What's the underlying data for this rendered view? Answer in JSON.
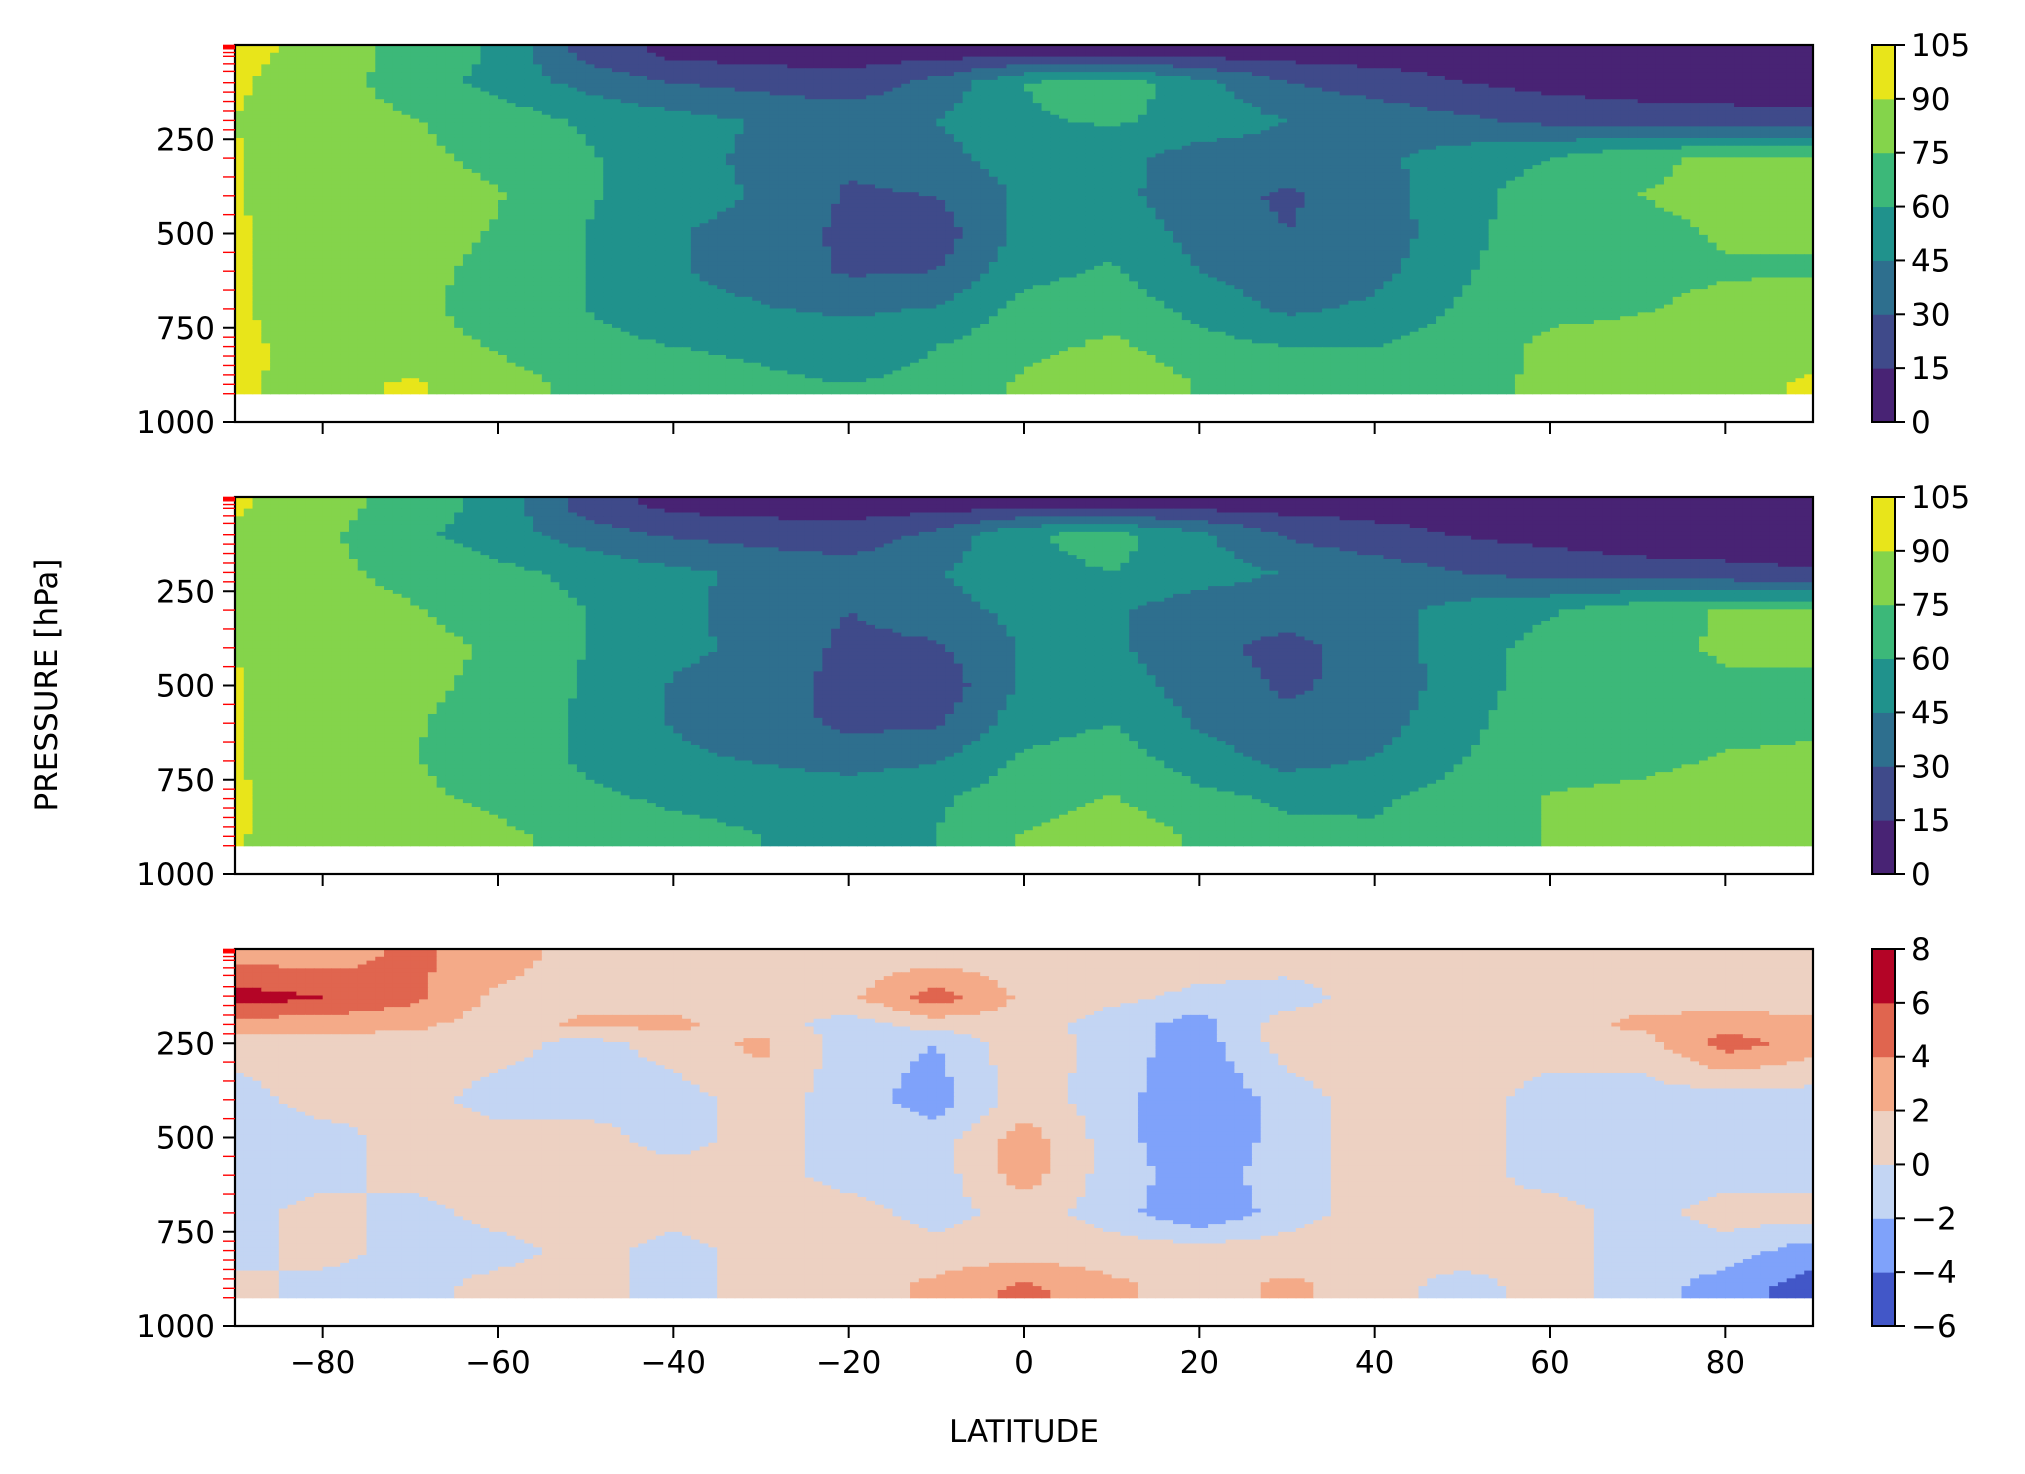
{
  "figure": {
    "ylabel": "PRESSURE [hPa]",
    "xlabel": "LATITUDE"
  },
  "chart_data": [
    {
      "type": "contourf",
      "panel": "top",
      "x": {
        "label": "",
        "lim": [
          -90,
          90
        ],
        "ticks": [
          -80,
          -60,
          -40,
          -20,
          0,
          20,
          40,
          60,
          80
        ],
        "tick_labels_shown": false
      },
      "y": {
        "label": "",
        "lim": [
          1000,
          0
        ],
        "inverted": true,
        "ticks": [
          250,
          500,
          750,
          1000
        ],
        "tick_labels": [
          "250",
          "500",
          "750",
          "1000"
        ]
      },
      "pressure_levels": [
        1,
        2,
        3,
        5,
        7,
        10,
        20,
        30,
        50,
        70,
        100,
        125,
        150,
        175,
        200,
        225,
        250,
        300,
        350,
        400,
        450,
        500,
        550,
        600,
        650,
        700,
        750,
        775,
        800,
        825,
        850,
        875,
        900,
        925
      ],
      "data_floor_hpa": 925,
      "colormap": "viridis",
      "levels": [
        0,
        15,
        30,
        45,
        60,
        75,
        90,
        105
      ],
      "colors": [
        "#482374",
        "#3f4a8a",
        "#2e6f8e",
        "#20928c",
        "#3cb879",
        "#84d44b",
        "#e8e51a"
      ],
      "colorbar_ticks": [
        "0",
        "15",
        "30",
        "45",
        "60",
        "75",
        "90",
        "105"
      ],
      "latitudes": [
        -90,
        -80,
        -70,
        -60,
        -50,
        -40,
        -30,
        -20,
        -10,
        0,
        10,
        20,
        30,
        40,
        50,
        60,
        70,
        80,
        90
      ],
      "rows": [
        {
          "p": 20,
          "values": [
            95,
            84,
            70,
            58,
            25,
            10,
            8,
            8,
            8,
            8,
            8,
            8,
            8,
            8,
            8,
            8,
            8,
            8,
            8
          ]
        },
        {
          "p": 100,
          "values": [
            92,
            82,
            68,
            55,
            40,
            30,
            25,
            20,
            35,
            60,
            70,
            50,
            30,
            22,
            15,
            10,
            8,
            8,
            8
          ]
        },
        {
          "p": 200,
          "values": [
            90,
            82,
            76,
            68,
            58,
            50,
            44,
            40,
            45,
            58,
            62,
            55,
            45,
            40,
            33,
            26,
            22,
            20,
            18
          ]
        },
        {
          "p": 300,
          "values": [
            91,
            80,
            78,
            72,
            62,
            50,
            42,
            32,
            40,
            52,
            50,
            38,
            38,
            42,
            52,
            60,
            72,
            78,
            78
          ]
        },
        {
          "p": 400,
          "values": [
            91,
            81,
            80,
            76,
            62,
            50,
            44,
            28,
            30,
            48,
            50,
            35,
            28,
            38,
            55,
            68,
            75,
            78,
            78
          ]
        },
        {
          "p": 500,
          "values": [
            92,
            82,
            80,
            74,
            60,
            46,
            40,
            26,
            22,
            50,
            55,
            40,
            30,
            36,
            55,
            70,
            72,
            76,
            76
          ]
        },
        {
          "p": 600,
          "values": [
            92,
            82,
            78,
            72,
            60,
            46,
            40,
            28,
            30,
            55,
            62,
            45,
            35,
            40,
            58,
            72,
            72,
            74,
            74
          ]
        },
        {
          "p": 700,
          "values": [
            92,
            82,
            78,
            70,
            60,
            50,
            46,
            42,
            46,
            65,
            70,
            55,
            42,
            48,
            62,
            72,
            74,
            78,
            80
          ]
        },
        {
          "p": 800,
          "values": [
            93,
            85,
            80,
            74,
            65,
            60,
            58,
            55,
            60,
            70,
            78,
            66,
            60,
            60,
            68,
            78,
            80,
            84,
            86
          ]
        },
        {
          "p": 900,
          "values": [
            92,
            86,
            92,
            80,
            72,
            66,
            62,
            60,
            62,
            78,
            88,
            74,
            65,
            64,
            70,
            78,
            82,
            86,
            92
          ]
        }
      ]
    },
    {
      "type": "contourf",
      "panel": "middle",
      "x": {
        "label": "",
        "lim": [
          -90,
          90
        ],
        "ticks": [
          -80,
          -60,
          -40,
          -20,
          0,
          20,
          40,
          60,
          80
        ],
        "tick_labels_shown": false
      },
      "y": {
        "label": "",
        "lim": [
          1000,
          0
        ],
        "inverted": true,
        "ticks": [
          250,
          500,
          750,
          1000
        ],
        "tick_labels": [
          "250",
          "500",
          "750",
          "1000"
        ]
      },
      "pressure_levels": [
        1,
        2,
        3,
        5,
        7,
        10,
        20,
        30,
        50,
        70,
        100,
        125,
        150,
        175,
        200,
        225,
        250,
        300,
        350,
        400,
        450,
        500,
        550,
        600,
        650,
        700,
        750,
        775,
        800,
        825,
        850,
        875,
        900,
        925
      ],
      "data_floor_hpa": 925,
      "colormap": "viridis",
      "levels": [
        0,
        15,
        30,
        45,
        60,
        75,
        90,
        105
      ],
      "colors": [
        "#482374",
        "#3f4a8a",
        "#2e6f8e",
        "#20928c",
        "#3cb879",
        "#84d44b",
        "#e8e51a"
      ],
      "colorbar_ticks": [
        "0",
        "15",
        "30",
        "45",
        "60",
        "75",
        "90",
        "105"
      ],
      "latitudes": [
        -90,
        -80,
        -70,
        -60,
        -50,
        -40,
        -30,
        -20,
        -10,
        0,
        10,
        20,
        30,
        40,
        50,
        60,
        70,
        80,
        90
      ],
      "rows": [
        {
          "p": 20,
          "values": [
            92,
            82,
            68,
            55,
            22,
            10,
            8,
            8,
            8,
            8,
            8,
            8,
            8,
            8,
            8,
            8,
            8,
            8,
            8
          ]
        },
        {
          "p": 100,
          "values": [
            88,
            78,
            64,
            52,
            38,
            28,
            24,
            20,
            34,
            58,
            66,
            48,
            28,
            20,
            14,
            10,
            8,
            8,
            8
          ]
        },
        {
          "p": 200,
          "values": [
            88,
            78,
            72,
            64,
            56,
            48,
            42,
            38,
            44,
            56,
            60,
            52,
            44,
            38,
            30,
            24,
            20,
            18,
            16
          ]
        },
        {
          "p": 300,
          "values": [
            90,
            78,
            76,
            70,
            60,
            48,
            40,
            30,
            38,
            50,
            48,
            36,
            36,
            40,
            50,
            58,
            70,
            76,
            76
          ]
        },
        {
          "p": 400,
          "values": [
            90,
            79,
            78,
            74,
            60,
            48,
            42,
            26,
            28,
            46,
            48,
            33,
            26,
            36,
            53,
            66,
            73,
            76,
            76
          ]
        },
        {
          "p": 500,
          "values": [
            91,
            80,
            78,
            72,
            58,
            44,
            38,
            24,
            20,
            48,
            53,
            38,
            28,
            34,
            53,
            68,
            70,
            74,
            74
          ]
        },
        {
          "p": 600,
          "values": [
            91,
            80,
            76,
            70,
            58,
            44,
            38,
            26,
            28,
            53,
            60,
            43,
            33,
            38,
            56,
            70,
            70,
            72,
            72
          ]
        },
        {
          "p": 700,
          "values": [
            91,
            80,
            76,
            68,
            58,
            48,
            44,
            40,
            44,
            63,
            68,
            53,
            40,
            46,
            60,
            70,
            72,
            76,
            78
          ]
        },
        {
          "p": 800,
          "values": [
            92,
            83,
            78,
            72,
            63,
            58,
            56,
            53,
            58,
            68,
            76,
            64,
            58,
            58,
            66,
            76,
            78,
            82,
            84
          ]
        },
        {
          "p": 900,
          "values": [
            91,
            84,
            90,
            78,
            70,
            64,
            60,
            58,
            60,
            76,
            86,
            72,
            63,
            62,
            68,
            76,
            80,
            84,
            90
          ]
        }
      ]
    },
    {
      "type": "contourf",
      "panel": "bottom",
      "x": {
        "label": "LATITUDE",
        "lim": [
          -90,
          90
        ],
        "ticks": [
          -80,
          -60,
          -40,
          -20,
          0,
          20,
          40,
          60,
          80
        ],
        "tick_labels": [
          "−80",
          "−60",
          "−40",
          "−20",
          "0",
          "20",
          "40",
          "60",
          "80"
        ]
      },
      "y": {
        "label": "",
        "lim": [
          1000,
          0
        ],
        "inverted": true,
        "ticks": [
          250,
          500,
          750,
          1000
        ],
        "tick_labels": [
          "250",
          "500",
          "750",
          "1000"
        ]
      },
      "pressure_levels": [
        1,
        2,
        3,
        5,
        7,
        10,
        20,
        30,
        50,
        70,
        100,
        125,
        150,
        175,
        200,
        225,
        250,
        300,
        350,
        400,
        450,
        500,
        550,
        600,
        650,
        700,
        750,
        775,
        800,
        825,
        850,
        875,
        900,
        925
      ],
      "data_floor_hpa": 925,
      "colormap": "coolwarm",
      "levels": [
        -6,
        -4,
        -2,
        0,
        2,
        4,
        6,
        8
      ],
      "colors": [
        "#4257c8",
        "#7fa2fa",
        "#c3d5f3",
        "#edd1c2",
        "#f4aa88",
        "#e0654f",
        "#b40426"
      ],
      "colorbar_ticks": [
        "8",
        "6",
        "4",
        "2",
        "0",
        "−2",
        "−4",
        "−6"
      ],
      "latitudes": [
        -90,
        -80,
        -70,
        -60,
        -50,
        -40,
        -30,
        -20,
        -10,
        0,
        10,
        20,
        30,
        40,
        50,
        60,
        70,
        80,
        90
      ],
      "rows": [
        {
          "p": 20,
          "values": [
            3.5,
            3,
            4.5,
            3,
            1,
            1,
            1,
            1,
            1,
            1,
            1,
            1,
            1,
            1,
            1,
            1,
            1,
            1,
            1
          ]
        },
        {
          "p": 130,
          "values": [
            7,
            6,
            4.5,
            1.5,
            1,
            1,
            1,
            1.5,
            5,
            1.5,
            0.5,
            -0.5,
            -1,
            1,
            1,
            1,
            1,
            1,
            1
          ]
        },
        {
          "p": 200,
          "values": [
            3,
            3,
            2.5,
            1,
            2.5,
            2.5,
            1,
            -1,
            1,
            1,
            -1,
            -3,
            1,
            1,
            1,
            1,
            2.5,
            3,
            2.5
          ]
        },
        {
          "p": 250,
          "values": [
            1,
            1,
            1,
            1,
            -1,
            1,
            2.5,
            -1,
            -2,
            1.5,
            -1,
            -3,
            1,
            1,
            1,
            1,
            1,
            5,
            3
          ]
        },
        {
          "p": 400,
          "values": [
            -1,
            1,
            1,
            -1,
            -1,
            -1,
            1,
            -1,
            -3,
            1,
            -1,
            -4,
            -1,
            1,
            1,
            -1,
            -1,
            -1,
            -1
          ]
        },
        {
          "p": 500,
          "values": [
            -1,
            -1,
            1,
            1,
            1,
            -1,
            1,
            -1,
            -1,
            3,
            -1,
            -4,
            -1,
            1,
            1,
            -1,
            -1,
            -1,
            -1
          ]
        },
        {
          "p": 600,
          "values": [
            -1,
            -1,
            1,
            1,
            1,
            1,
            1,
            -1,
            -1,
            3,
            -1,
            -3,
            -1,
            1,
            1,
            -1,
            -1,
            -1,
            -1
          ]
        },
        {
          "p": 700,
          "values": [
            -1,
            1,
            -1,
            1,
            1,
            1,
            2,
            1,
            -1,
            1,
            -1,
            -4,
            -1,
            1,
            1,
            1,
            -1,
            1,
            1
          ]
        },
        {
          "p": 800,
          "values": [
            -1,
            1,
            -1,
            -1,
            1,
            -1,
            1,
            1,
            1,
            1,
            1,
            1,
            1,
            1,
            1,
            1,
            -1,
            -1,
            -3
          ]
        },
        {
          "p": 900,
          "values": [
            1,
            -1,
            -1,
            1,
            1,
            -1,
            1,
            1,
            2.5,
            4.5,
            2.5,
            1,
            2.5,
            1,
            -1,
            1,
            -1,
            -3,
            -5
          ]
        }
      ]
    }
  ]
}
